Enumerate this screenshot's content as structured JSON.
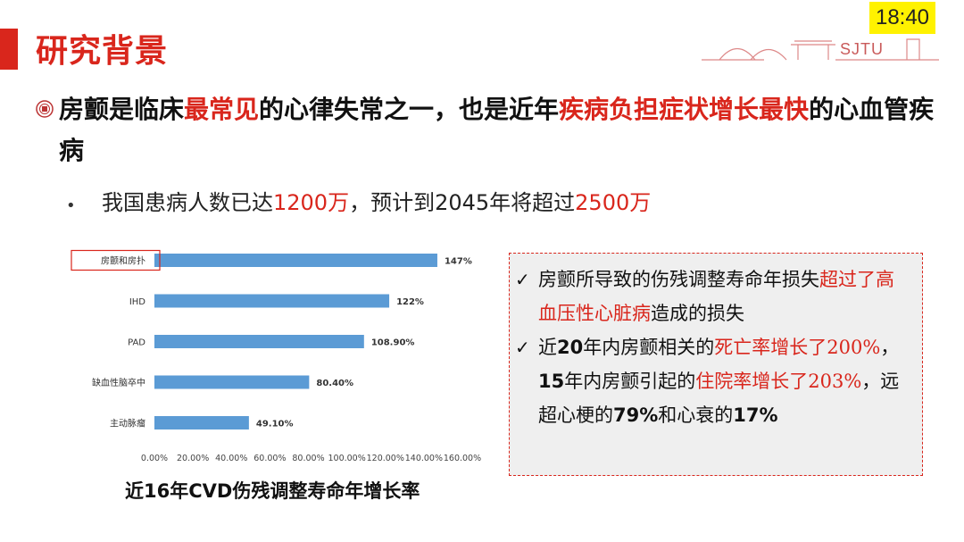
{
  "slide": {
    "title": "研究背景",
    "clock": "18:40",
    "logo_text": "SJTU"
  },
  "heading": {
    "p1": "房颤是临床",
    "h1": "最常见",
    "p2": "的心律失常之一，也是近年",
    "h2": "疾病负担症状增长最快",
    "p3": "的心血管疾病"
  },
  "subpoint": {
    "p1": "我国患病人数已达",
    "n1": "1200万",
    "p2": "，预计到2045年将超过",
    "n2": "2500万"
  },
  "chart_data": {
    "type": "bar",
    "orientation": "horizontal",
    "categories": [
      "房颤和房扑",
      "IHD",
      "PAD",
      "缺血性脑卒中",
      "主动脉瘤"
    ],
    "values": [
      147,
      122,
      108.9,
      80.4,
      49.1
    ],
    "value_labels": [
      "147%",
      "122%",
      "108.90%",
      "80.40%",
      "49.10%"
    ],
    "xticks": [
      "0.00%",
      "20.00%",
      "40.00%",
      "60.00%",
      "80.00%",
      "100.00%",
      "120.00%",
      "140.00%",
      "160.00%"
    ],
    "xlim": [
      0,
      160
    ],
    "highlighted_category": "房颤和房扑",
    "bar_color": "#5b9bd5",
    "caption": "近16年CVD伤残调整寿命年增长率"
  },
  "info": {
    "item1": {
      "a": "房颤所导致的伤残调整寿命年损失",
      "b": "超过了高血压性心脏病",
      "c": "造成的损失"
    },
    "item2": {
      "a": "近",
      "b": "20",
      "c": "年内房颤相关的",
      "d": "死亡率增长了200%",
      "e": "，",
      "f": "15",
      "g": "年内房颤引起的",
      "h": "住院率增长了203%",
      "i": "，远超心梗的",
      "j": "79%",
      "k": "和心衰的",
      "l": "17%"
    }
  },
  "colors": {
    "accent": "#d9261c",
    "highlight": "#fff200",
    "bar": "#5b9bd5"
  }
}
